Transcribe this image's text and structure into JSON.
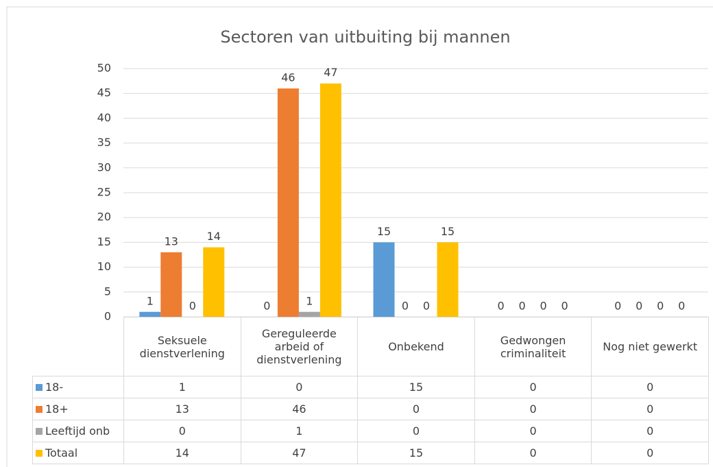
{
  "chart_data": {
    "type": "bar",
    "title": "Sectoren van uitbuiting bij mannen",
    "categories": [
      "Seksuele dienstverlening",
      "Gereguleerde arbeid of dienstverlening",
      "Onbekend",
      "Gedwongen criminaliteit",
      "Nog niet gewerkt"
    ],
    "series": [
      {
        "name": "18-",
        "color": "#5b9bd5",
        "values": [
          1,
          0,
          15,
          0,
          0
        ]
      },
      {
        "name": "18+",
        "color": "#ed7d31",
        "values": [
          13,
          46,
          0,
          0,
          0
        ]
      },
      {
        "name": "Leeftijd onb",
        "color": "#a5a5a5",
        "values": [
          0,
          1,
          0,
          0,
          0
        ]
      },
      {
        "name": "Totaal",
        "color": "#ffc000",
        "values": [
          14,
          47,
          15,
          0,
          0
        ]
      }
    ],
    "ylim": [
      0,
      50
    ],
    "yticks": [
      0,
      5,
      10,
      15,
      20,
      25,
      30,
      35,
      40,
      45,
      50
    ],
    "grid": true
  }
}
